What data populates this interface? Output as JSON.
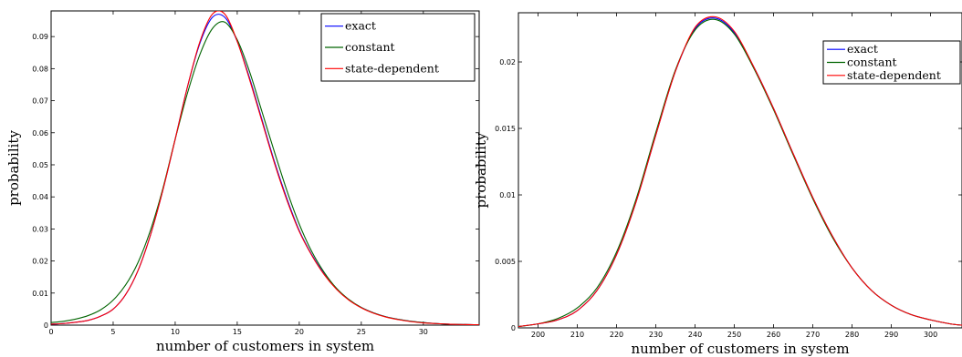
{
  "chart_data": [
    {
      "type": "line",
      "xlabel": "number of customers in system",
      "ylabel": "probability",
      "xlim": [
        0,
        34.5
      ],
      "ylim": [
        0,
        0.098
      ],
      "xticks": [
        0,
        5,
        10,
        15,
        20,
        25,
        30
      ],
      "xtick_labels": [
        "0",
        "5",
        "10",
        "15",
        "20",
        "25",
        "30"
      ],
      "yticks": [
        0,
        0.01,
        0.02,
        0.03,
        0.04,
        0.05,
        0.06,
        0.07,
        0.08,
        0.09
      ],
      "ytick_labels": [
        "0",
        "0.01",
        "0.02",
        "0.03",
        "0.04",
        "0.05",
        "0.06",
        "0.07",
        "0.08",
        "0.09"
      ],
      "grid": false,
      "legend_position": "top-right",
      "x": [
        0,
        1,
        2,
        3,
        4,
        5,
        6,
        7,
        8,
        9,
        10,
        11,
        12,
        13,
        14,
        15,
        16,
        17,
        18,
        19,
        20,
        21,
        22,
        23,
        24,
        25,
        26,
        27,
        28,
        29,
        30,
        31,
        32,
        33,
        34.5
      ],
      "series": [
        {
          "name": "exact",
          "color": "#0000ff",
          "values": [
            0.0003,
            0.0005,
            0.0009,
            0.0015,
            0.0028,
            0.005,
            0.0095,
            0.017,
            0.028,
            0.042,
            0.058,
            0.0745,
            0.088,
            0.096,
            0.096,
            0.0885,
            0.077,
            0.064,
            0.051,
            0.0395,
            0.0295,
            0.022,
            0.016,
            0.0113,
            0.0079,
            0.0055,
            0.0038,
            0.0026,
            0.0018,
            0.0012,
            0.0008,
            0.0005,
            0.0003,
            0.0002,
            0.0001
          ]
        },
        {
          "name": "constant",
          "color": "#006400",
          "values": [
            0.0008,
            0.0012,
            0.0019,
            0.003,
            0.0048,
            0.0078,
            0.0125,
            0.0195,
            0.0295,
            0.0425,
            0.058,
            0.0725,
            0.0845,
            0.0925,
            0.0945,
            0.089,
            0.079,
            0.0665,
            0.054,
            0.042,
            0.0315,
            0.023,
            0.0165,
            0.0115,
            0.008,
            0.0055,
            0.0038,
            0.0026,
            0.0018,
            0.0012,
            0.0008,
            0.0005,
            0.0003,
            0.0002,
            0.0001
          ]
        },
        {
          "name": "state-dependent",
          "color": "#ff0000",
          "values": [
            0.0003,
            0.0005,
            0.0009,
            0.0015,
            0.0028,
            0.005,
            0.0095,
            0.017,
            0.028,
            0.042,
            0.058,
            0.0745,
            0.0885,
            0.097,
            0.097,
            0.0885,
            0.0765,
            0.0635,
            0.0505,
            0.039,
            0.0292,
            0.0218,
            0.0158,
            0.0112,
            0.0078,
            0.0054,
            0.0037,
            0.0025,
            0.0017,
            0.0011,
            0.0007,
            0.0005,
            0.0003,
            0.0002,
            0.0001
          ]
        }
      ]
    },
    {
      "type": "line",
      "xlabel": "number of customers in system",
      "ylabel": "probability",
      "xlim": [
        195,
        308
      ],
      "ylim": [
        0,
        0.0237
      ],
      "xticks": [
        200,
        210,
        220,
        230,
        240,
        250,
        260,
        270,
        280,
        290,
        300
      ],
      "xtick_labels": [
        "200",
        "210",
        "220",
        "230",
        "240",
        "250",
        "260",
        "270",
        "280",
        "290",
        "300"
      ],
      "yticks": [
        0,
        0.005,
        0.01,
        0.015,
        0.02
      ],
      "ytick_labels": [
        "0",
        "0.005",
        "0.01",
        "0.015",
        "0.02"
      ],
      "grid": false,
      "legend_position": "top-right",
      "x": [
        195,
        200,
        205,
        210,
        215,
        220,
        225,
        230,
        235,
        240,
        245,
        250,
        255,
        260,
        265,
        270,
        275,
        280,
        285,
        290,
        295,
        300,
        305,
        308
      ],
      "series": [
        {
          "name": "exact",
          "color": "#0000ff",
          "values": [
            0.0001,
            0.0003,
            0.0006,
            0.0013,
            0.0028,
            0.0055,
            0.0095,
            0.0145,
            0.0193,
            0.0225,
            0.0233,
            0.0222,
            0.0196,
            0.0165,
            0.0131,
            0.0098,
            0.0069,
            0.0045,
            0.0028,
            0.0017,
            0.001,
            0.0006,
            0.0003,
            0.0002
          ]
        },
        {
          "name": "constant",
          "color": "#006400",
          "values": [
            0.0001,
            0.0003,
            0.0007,
            0.0015,
            0.003,
            0.0057,
            0.0097,
            0.0147,
            0.0194,
            0.0224,
            0.0232,
            0.0221,
            0.0195,
            0.0164,
            0.013,
            0.0097,
            0.0068,
            0.0045,
            0.0028,
            0.0017,
            0.001,
            0.0006,
            0.0003,
            0.0002
          ]
        },
        {
          "name": "state-dependent",
          "color": "#ff0000",
          "values": [
            0.0001,
            0.0003,
            0.0006,
            0.0013,
            0.0028,
            0.0055,
            0.0095,
            0.0145,
            0.0193,
            0.0226,
            0.0234,
            0.0223,
            0.0196,
            0.0165,
            0.0131,
            0.0098,
            0.0069,
            0.0045,
            0.0028,
            0.0017,
            0.001,
            0.0006,
            0.0003,
            0.0002
          ]
        }
      ]
    }
  ]
}
